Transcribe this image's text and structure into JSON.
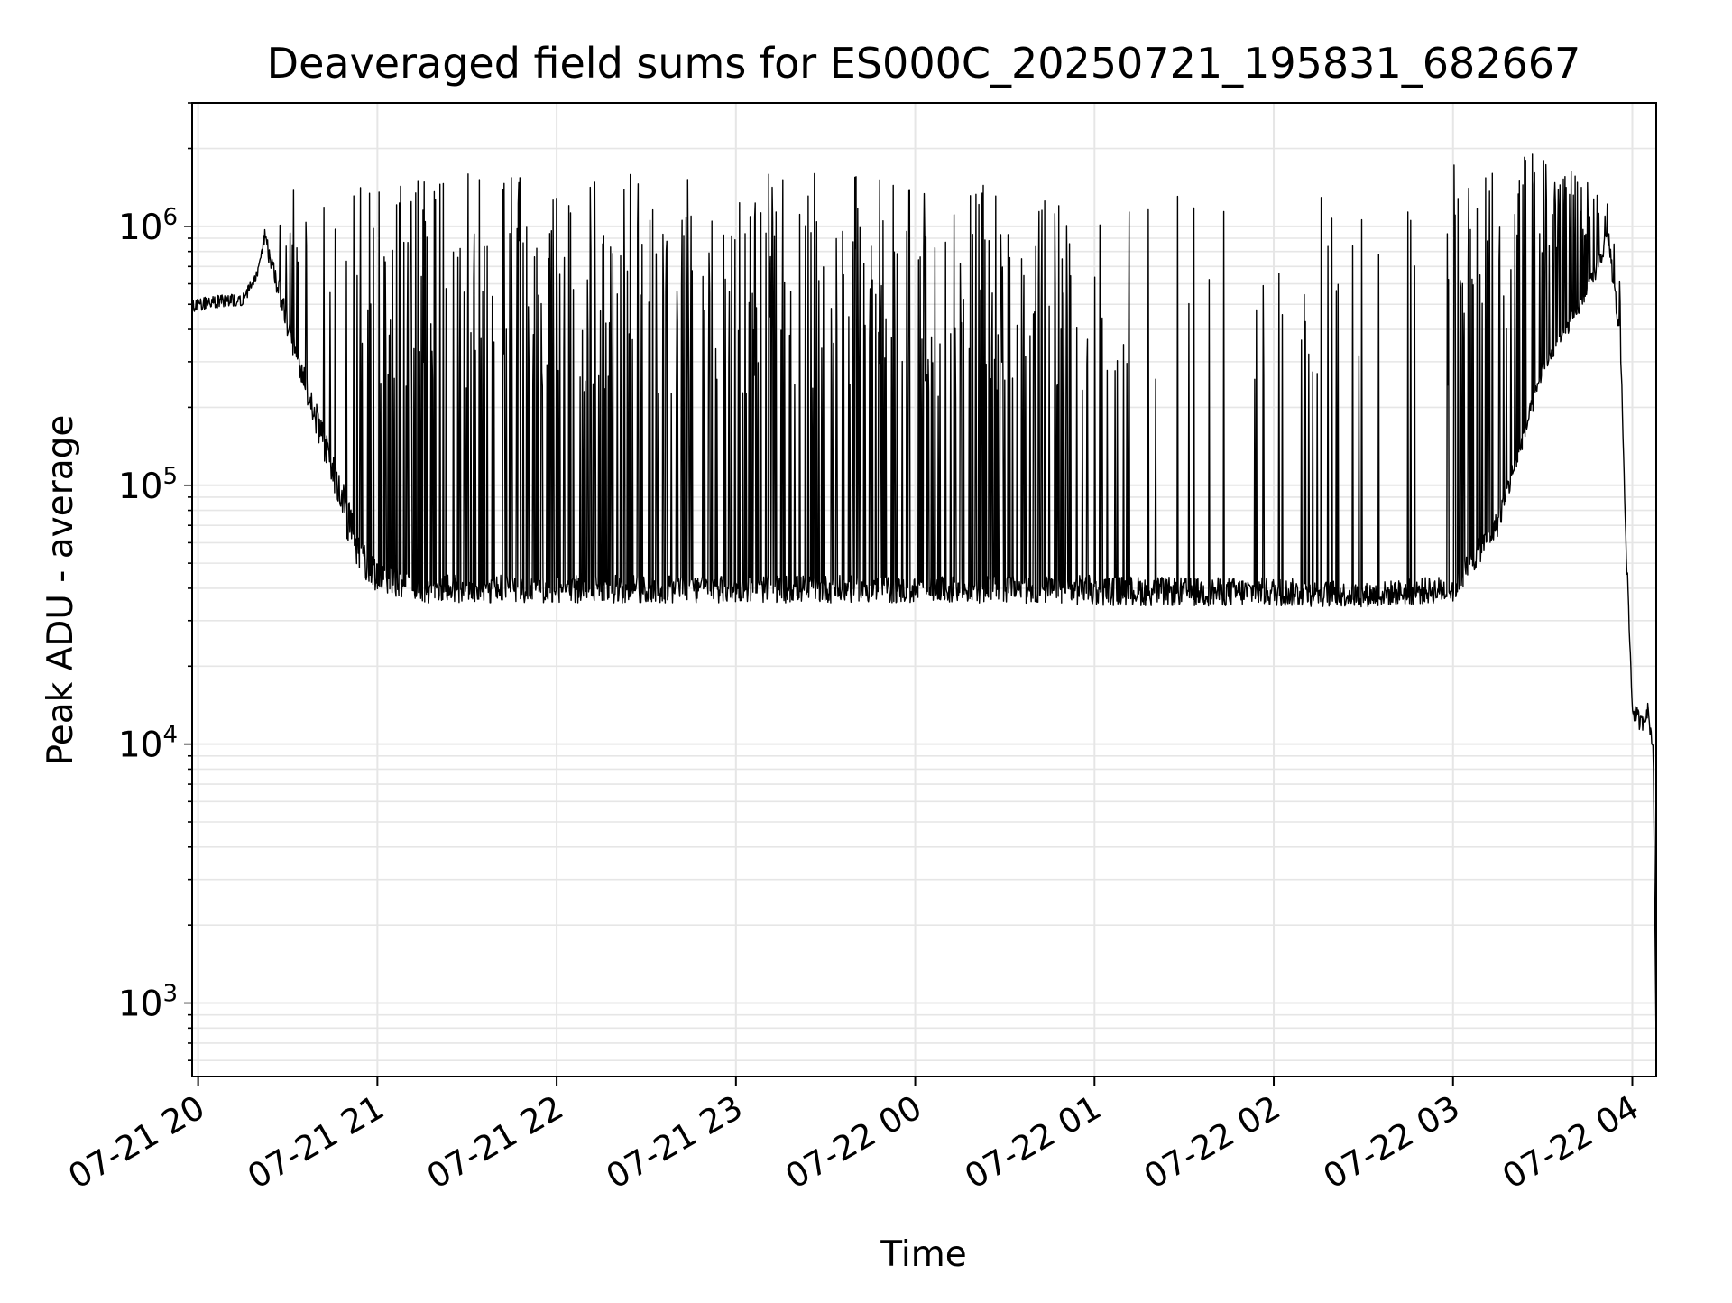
{
  "chart_data": {
    "type": "line",
    "title": "Deaveraged field sums for ES000C_20250721_195831_682667",
    "xlabel": "Time",
    "ylabel": "Peak ADU - average",
    "yscale": "log",
    "ylim": [
      520,
      3000000
    ],
    "xlim": [
      "2025-07-21 19:58:31",
      "2025-07-22 04:08:00"
    ],
    "grid": true,
    "legend": "none",
    "line_color": "#000000",
    "grid_color": "#e6e6e6",
    "x_ticks": [
      {
        "label": "07-21 20",
        "time": "2025-07-21 20:00"
      },
      {
        "label": "07-21 21",
        "time": "2025-07-21 21:00"
      },
      {
        "label": "07-21 22",
        "time": "2025-07-21 22:00"
      },
      {
        "label": "07-21 23",
        "time": "2025-07-21 23:00"
      },
      {
        "label": "07-22 00",
        "time": "2025-07-22 00:00"
      },
      {
        "label": "07-22 01",
        "time": "2025-07-22 01:00"
      },
      {
        "label": "07-22 02",
        "time": "2025-07-22 02:00"
      },
      {
        "label": "07-22 03",
        "time": "2025-07-22 03:00"
      },
      {
        "label": "07-22 04",
        "time": "2025-07-22 04:00"
      }
    ],
    "y_ticks": [
      {
        "base": "10",
        "exp": "3",
        "value": 1000
      },
      {
        "base": "10",
        "exp": "4",
        "value": 10000
      },
      {
        "base": "10",
        "exp": "5",
        "value": 100000
      },
      {
        "base": "10",
        "exp": "6",
        "value": 1000000
      }
    ],
    "series": [
      {
        "x": [
          "2025-07-21 19:58",
          "2025-07-21 20:05",
          "2025-07-21 20:15",
          "2025-07-21 20:20",
          "2025-07-21 20:22",
          "2025-07-21 20:25",
          "2025-07-21 20:30",
          "2025-07-21 20:35",
          "2025-07-21 20:40",
          "2025-07-21 20:45",
          "2025-07-21 20:50",
          "2025-07-21 20:55",
          "2025-07-21 21:00",
          "2025-07-21 21:15",
          "2025-07-21 21:30",
          "2025-07-21 22:00",
          "2025-07-21 22:30",
          "2025-07-21 23:00",
          "2025-07-21 23:30",
          "2025-07-22 00:00",
          "2025-07-22 00:30",
          "2025-07-22 01:00",
          "2025-07-22 01:30",
          "2025-07-22 02:00",
          "2025-07-22 02:30",
          "2025-07-22 03:00",
          "2025-07-22 03:15",
          "2025-07-22 03:30",
          "2025-07-22 03:45",
          "2025-07-22 03:52",
          "2025-07-22 03:56",
          "2025-07-22 03:58",
          "2025-07-22 04:00",
          "2025-07-22 04:03",
          "2025-07-22 04:05",
          "2025-07-22 04:07",
          "2025-07-22 04:08"
        ],
        "baseline": [
          520000,
          540000,
          550000,
          700000,
          1000000,
          800000,
          480000,
          300000,
          200000,
          140000,
          90000,
          60000,
          50000,
          45000,
          45000,
          45000,
          45000,
          45000,
          45000,
          44000,
          45000,
          45000,
          44000,
          44000,
          42000,
          45000,
          80000,
          300000,
          600000,
          1000000,
          400000,
          60000,
          15000,
          13000,
          15000,
          10000,
          650
        ],
        "spike_peak": [
          600000,
          620000,
          650000,
          900000,
          1900000,
          1000000,
          1400000,
          1600000,
          1800000,
          1900000,
          1700000,
          1700000,
          1700000,
          1600000,
          1600000,
          1600000,
          1600000,
          1600000,
          1600000,
          1600000,
          1400000,
          1200000,
          1400000,
          1400000,
          1600000,
          1800000,
          1900000,
          2000000,
          1500000,
          1300000,
          600000,
          60000,
          19000,
          16000,
          17000,
          11000,
          650
        ],
        "spike_trough": [
          450000,
          470000,
          480000,
          600000,
          800000,
          600000,
          350000,
          220000,
          140000,
          90000,
          55000,
          40000,
          36000,
          33000,
          33000,
          33000,
          33000,
          33000,
          33000,
          33000,
          33000,
          32000,
          32000,
          32000,
          32000,
          33000,
          60000,
          250000,
          500000,
          800000,
          300000,
          50000,
          12000,
          10500,
          12000,
          9000,
          650
        ]
      }
    ]
  }
}
